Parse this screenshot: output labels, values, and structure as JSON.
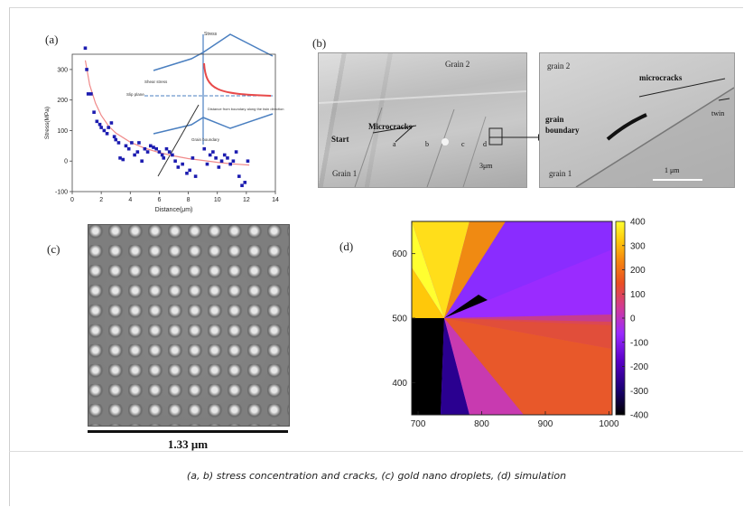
{
  "caption": "(a, b) stress concentration and cracks, (c) gold nano droplets, (d) simulation",
  "panels": {
    "a": {
      "label": "(a)",
      "inset_labels": {
        "shear_stress": "Shear stress",
        "slip_plane": "Slip plane",
        "grain_boundary": "Grain boundary",
        "distance_from_boundary": "Distance from boundary along the twin direction",
        "stress": "Stress"
      }
    },
    "b": {
      "label": "(b)",
      "left": {
        "grain_top": "Grain 2",
        "grain_bottom": "Grain 1",
        "microcracks": "Microcracks",
        "start": "Start",
        "scale": "3μm",
        "letters": [
          "a",
          "b",
          "c",
          "d"
        ]
      },
      "right": {
        "grain_top": "grain 2",
        "grain_bottom": "grain 1",
        "microcracks": "microcracks",
        "grain_boundary_1": "grain",
        "grain_boundary_2": "boundary",
        "twin": "twin",
        "scale": "1 μm"
      }
    },
    "c": {
      "label": "(c)",
      "scale": "1.33 μm"
    },
    "d": {
      "label": "(d)"
    }
  },
  "colors": {
    "series_points": "#1c1cb0",
    "fit_curve": "#f08a8a",
    "inset_lines": "#4a7fc0",
    "inset_curve": "#e84a4a"
  },
  "chart_data": [
    {
      "panel": "a",
      "type": "scatter",
      "ylabel": "Stress(MPa)",
      "xlabel": "Distance(μm)",
      "xlim": [
        0,
        14
      ],
      "ylim": [
        -100,
        350
      ],
      "xticks": [
        0,
        2,
        4,
        6,
        8,
        10,
        12,
        14
      ],
      "yticks": [
        -100,
        0,
        100,
        200,
        300
      ],
      "points": [
        [
          0.9,
          370
        ],
        [
          1.0,
          300
        ],
        [
          1.1,
          220
        ],
        [
          1.3,
          220
        ],
        [
          1.5,
          160
        ],
        [
          1.7,
          130
        ],
        [
          1.9,
          120
        ],
        [
          2.0,
          110
        ],
        [
          2.2,
          100
        ],
        [
          2.4,
          90
        ],
        [
          2.5,
          110
        ],
        [
          2.7,
          125
        ],
        [
          2.9,
          80
        ],
        [
          3.0,
          70
        ],
        [
          3.2,
          60
        ],
        [
          3.3,
          10
        ],
        [
          3.5,
          5
        ],
        [
          3.7,
          50
        ],
        [
          3.9,
          40
        ],
        [
          4.1,
          60
        ],
        [
          4.3,
          20
        ],
        [
          4.5,
          30
        ],
        [
          4.6,
          60
        ],
        [
          4.8,
          0
        ],
        [
          5.0,
          40
        ],
        [
          5.2,
          30
        ],
        [
          5.4,
          50
        ],
        [
          5.6,
          45
        ],
        [
          5.8,
          40
        ],
        [
          6.0,
          30
        ],
        [
          6.2,
          20
        ],
        [
          6.3,
          10
        ],
        [
          6.5,
          40
        ],
        [
          6.7,
          30
        ],
        [
          6.9,
          20
        ],
        [
          7.1,
          0
        ],
        [
          7.3,
          -20
        ],
        [
          7.6,
          -10
        ],
        [
          7.9,
          -40
        ],
        [
          8.1,
          -30
        ],
        [
          8.3,
          10
        ],
        [
          8.5,
          -50
        ],
        [
          9.1,
          40
        ],
        [
          9.3,
          -10
        ],
        [
          9.5,
          20
        ],
        [
          9.7,
          30
        ],
        [
          9.9,
          10
        ],
        [
          10.1,
          -20
        ],
        [
          10.3,
          0
        ],
        [
          10.5,
          20
        ],
        [
          10.7,
          10
        ],
        [
          10.9,
          -10
        ],
        [
          11.1,
          0
        ],
        [
          11.3,
          30
        ],
        [
          11.5,
          -50
        ],
        [
          11.7,
          -80
        ],
        [
          11.9,
          -70
        ],
        [
          12.1,
          0
        ]
      ],
      "fit": [
        [
          0.9,
          330
        ],
        [
          1.2,
          250
        ],
        [
          1.6,
          190
        ],
        [
          2.0,
          150
        ],
        [
          2.5,
          115
        ],
        [
          3.0,
          92
        ],
        [
          4.0,
          62
        ],
        [
          5.0,
          42
        ],
        [
          6.0,
          28
        ],
        [
          7.0,
          17
        ],
        [
          8.0,
          8
        ],
        [
          9.0,
          2
        ],
        [
          10.0,
          -4
        ],
        [
          11.0,
          -9
        ],
        [
          12.2,
          -13
        ]
      ]
    },
    {
      "panel": "d",
      "type": "heatmap",
      "xlim": [
        690,
        1005
      ],
      "ylim": [
        350,
        650
      ],
      "xticks": [
        700,
        800,
        900,
        1000
      ],
      "yticks": [
        400,
        500,
        600
      ],
      "colorbar_ticks": [
        400,
        300,
        200,
        100,
        0,
        -100,
        -200,
        -300,
        -400
      ],
      "colorbar_range": [
        -400,
        400
      ],
      "colormap": [
        "#000000",
        "#1a0073",
        "#5a00c8",
        "#9a2bff",
        "#d13a9a",
        "#ea4e22",
        "#f6880f",
        "#ffc80a",
        "#ffff30"
      ]
    }
  ]
}
